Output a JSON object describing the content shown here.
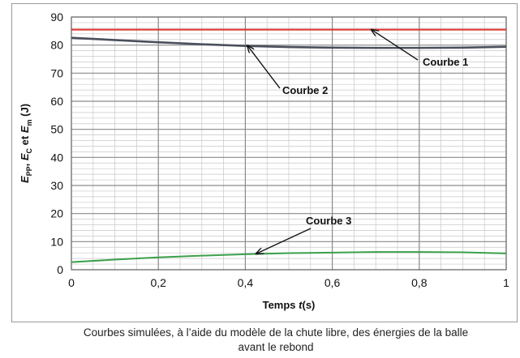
{
  "chart_data": {
    "type": "line",
    "xlabel": {
      "prefix": "Temps ",
      "var": "t",
      "suffix": "(s)"
    },
    "ylabel": {
      "parts": [
        {
          "text": "E",
          "italic": true
        },
        {
          "text": "PP",
          "sub": true
        },
        {
          "text": ", "
        },
        {
          "text": "E",
          "italic": true
        },
        {
          "text": "C",
          "sub": true
        },
        {
          "text": " et "
        },
        {
          "text": "E",
          "italic": true
        },
        {
          "text": "m",
          "sub": true
        },
        {
          "text": " (J)"
        }
      ]
    },
    "xlim": [
      0,
      1
    ],
    "ylim": [
      0,
      90
    ],
    "x_ticks": [
      0,
      0.2,
      0.4,
      0.6,
      0.8,
      1
    ],
    "x_tick_labels": [
      "0",
      "0,2",
      "0,4",
      "0,6",
      "0,8",
      "1"
    ],
    "y_ticks": [
      0,
      10,
      20,
      30,
      40,
      50,
      60,
      70,
      80,
      90
    ],
    "y_tick_labels": [
      "0",
      "10",
      "20",
      "30",
      "40",
      "50",
      "60",
      "70",
      "80",
      "90"
    ],
    "x_minor_step": 0.05,
    "y_minor_step": 2,
    "grid": true,
    "series": [
      {
        "name": "Courbe 1",
        "color": "#e0312b",
        "x": [
          0,
          0.2,
          0.4,
          0.6,
          0.8,
          1
        ],
        "y": [
          85.5,
          85.5,
          85.5,
          85.5,
          85.5,
          85.5
        ]
      },
      {
        "name": "Courbe 2",
        "color": "#4a4f5c",
        "x": [
          0,
          0.1,
          0.2,
          0.3,
          0.4,
          0.5,
          0.6,
          0.7,
          0.8,
          0.9,
          1
        ],
        "y": [
          82.6,
          81.8,
          81.0,
          80.3,
          79.7,
          79.3,
          79.1,
          79.0,
          79.0,
          79.1,
          79.4
        ]
      },
      {
        "name": "Courbe 3",
        "color": "#3aa04a",
        "x": [
          0,
          0.1,
          0.2,
          0.3,
          0.4,
          0.5,
          0.6,
          0.7,
          0.8,
          0.9,
          1
        ],
        "y": [
          2.7,
          3.6,
          4.4,
          5.0,
          5.5,
          5.9,
          6.1,
          6.3,
          6.3,
          6.2,
          5.8
        ]
      }
    ],
    "annotations": [
      {
        "text": "Courbe 1",
        "series": 0,
        "arrow_to": [
          0.69,
          85.5
        ]
      },
      {
        "text": "Courbe 2",
        "series": 1,
        "arrow_to": [
          0.405,
          79.8
        ]
      },
      {
        "text": "Courbe 3",
        "series": 2,
        "arrow_to": [
          0.425,
          5.7
        ]
      }
    ]
  },
  "caption": {
    "line1": "Courbes simulées, à l’aide du modèle de la chute libre, des énergies de la balle",
    "line2": "avant le rebond"
  }
}
